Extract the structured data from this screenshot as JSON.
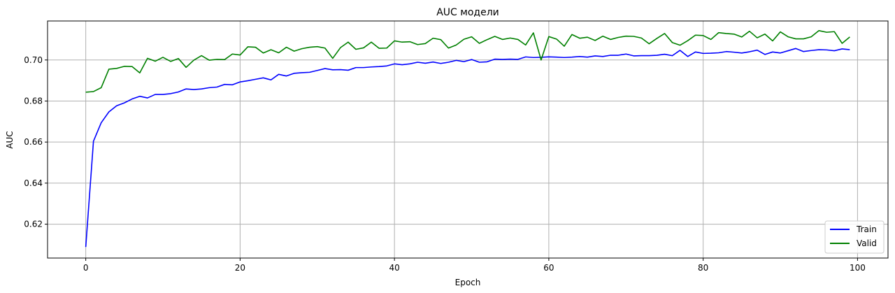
{
  "chart_data": {
    "type": "line",
    "title": "AUC модели",
    "xlabel": "Epoch",
    "ylabel": "AUC",
    "xlim": [
      -4.95,
      103.95
    ],
    "ylim": [
      0.6035,
      0.719
    ],
    "xticks": [
      0,
      20,
      40,
      60,
      80,
      100
    ],
    "yticks": [
      0.62,
      0.64,
      0.66,
      0.68,
      0.7
    ],
    "ytick_labels": [
      "0.62",
      "0.64",
      "0.66",
      "0.68",
      "0.70"
    ],
    "grid": true,
    "legend_position": "lower-right",
    "series": [
      {
        "name": "Train",
        "color": "#0000ff",
        "values": [
          0.6089,
          0.6604,
          0.6694,
          0.6747,
          0.6777,
          0.6791,
          0.681,
          0.6823,
          0.6815,
          0.6832,
          0.6832,
          0.6836,
          0.6844,
          0.6859,
          0.6856,
          0.6859,
          0.6865,
          0.6868,
          0.6881,
          0.6879,
          0.6893,
          0.6899,
          0.6906,
          0.6913,
          0.6903,
          0.693,
          0.6922,
          0.6935,
          0.6938,
          0.694,
          0.6949,
          0.6958,
          0.6952,
          0.6953,
          0.695,
          0.6963,
          0.6963,
          0.6966,
          0.6968,
          0.6971,
          0.6981,
          0.6977,
          0.6981,
          0.6989,
          0.6984,
          0.699,
          0.6983,
          0.6989,
          0.6998,
          0.6992,
          0.7002,
          0.6989,
          0.6991,
          0.7004,
          0.7003,
          0.7004,
          0.7003,
          0.7015,
          0.7012,
          0.7013,
          0.7015,
          0.7014,
          0.7012,
          0.7014,
          0.7017,
          0.7014,
          0.702,
          0.7017,
          0.7023,
          0.7023,
          0.7029,
          0.702,
          0.7021,
          0.7021,
          0.7023,
          0.7028,
          0.7021,
          0.7047,
          0.7017,
          0.7039,
          0.7032,
          0.7033,
          0.7035,
          0.7041,
          0.7038,
          0.7034,
          0.704,
          0.7048,
          0.7027,
          0.7039,
          0.7034,
          0.7045,
          0.7056,
          0.7041,
          0.7046,
          0.705,
          0.7049,
          0.7045,
          0.7054,
          0.705
        ]
      },
      {
        "name": "Valid",
        "color": "#008000",
        "values": [
          0.6843,
          0.6846,
          0.6865,
          0.6955,
          0.6959,
          0.6969,
          0.6968,
          0.6937,
          0.7008,
          0.6994,
          0.7013,
          0.6993,
          0.7007,
          0.6964,
          0.6999,
          0.7021,
          0.6999,
          0.7003,
          0.7002,
          0.7029,
          0.7024,
          0.7064,
          0.7062,
          0.7034,
          0.705,
          0.7035,
          0.7062,
          0.7043,
          0.7055,
          0.7062,
          0.7065,
          0.7058,
          0.7008,
          0.706,
          0.7087,
          0.7052,
          0.7059,
          0.7087,
          0.7057,
          0.7058,
          0.7093,
          0.7087,
          0.7089,
          0.7075,
          0.708,
          0.7106,
          0.7099,
          0.7058,
          0.7073,
          0.7101,
          0.7113,
          0.7081,
          0.7099,
          0.7115,
          0.71,
          0.7107,
          0.71,
          0.7073,
          0.7132,
          0.7,
          0.7114,
          0.7102,
          0.7067,
          0.7124,
          0.7106,
          0.7111,
          0.7095,
          0.7116,
          0.71,
          0.711,
          0.7116,
          0.7115,
          0.7107,
          0.7079,
          0.7105,
          0.7129,
          0.7085,
          0.7072,
          0.7094,
          0.7121,
          0.7119,
          0.71,
          0.7133,
          0.7129,
          0.7126,
          0.7112,
          0.714,
          0.7108,
          0.7126,
          0.7093,
          0.7137,
          0.7113,
          0.7103,
          0.7103,
          0.7113,
          0.7143,
          0.7135,
          0.7138,
          0.7081,
          0.7112
        ]
      }
    ]
  }
}
